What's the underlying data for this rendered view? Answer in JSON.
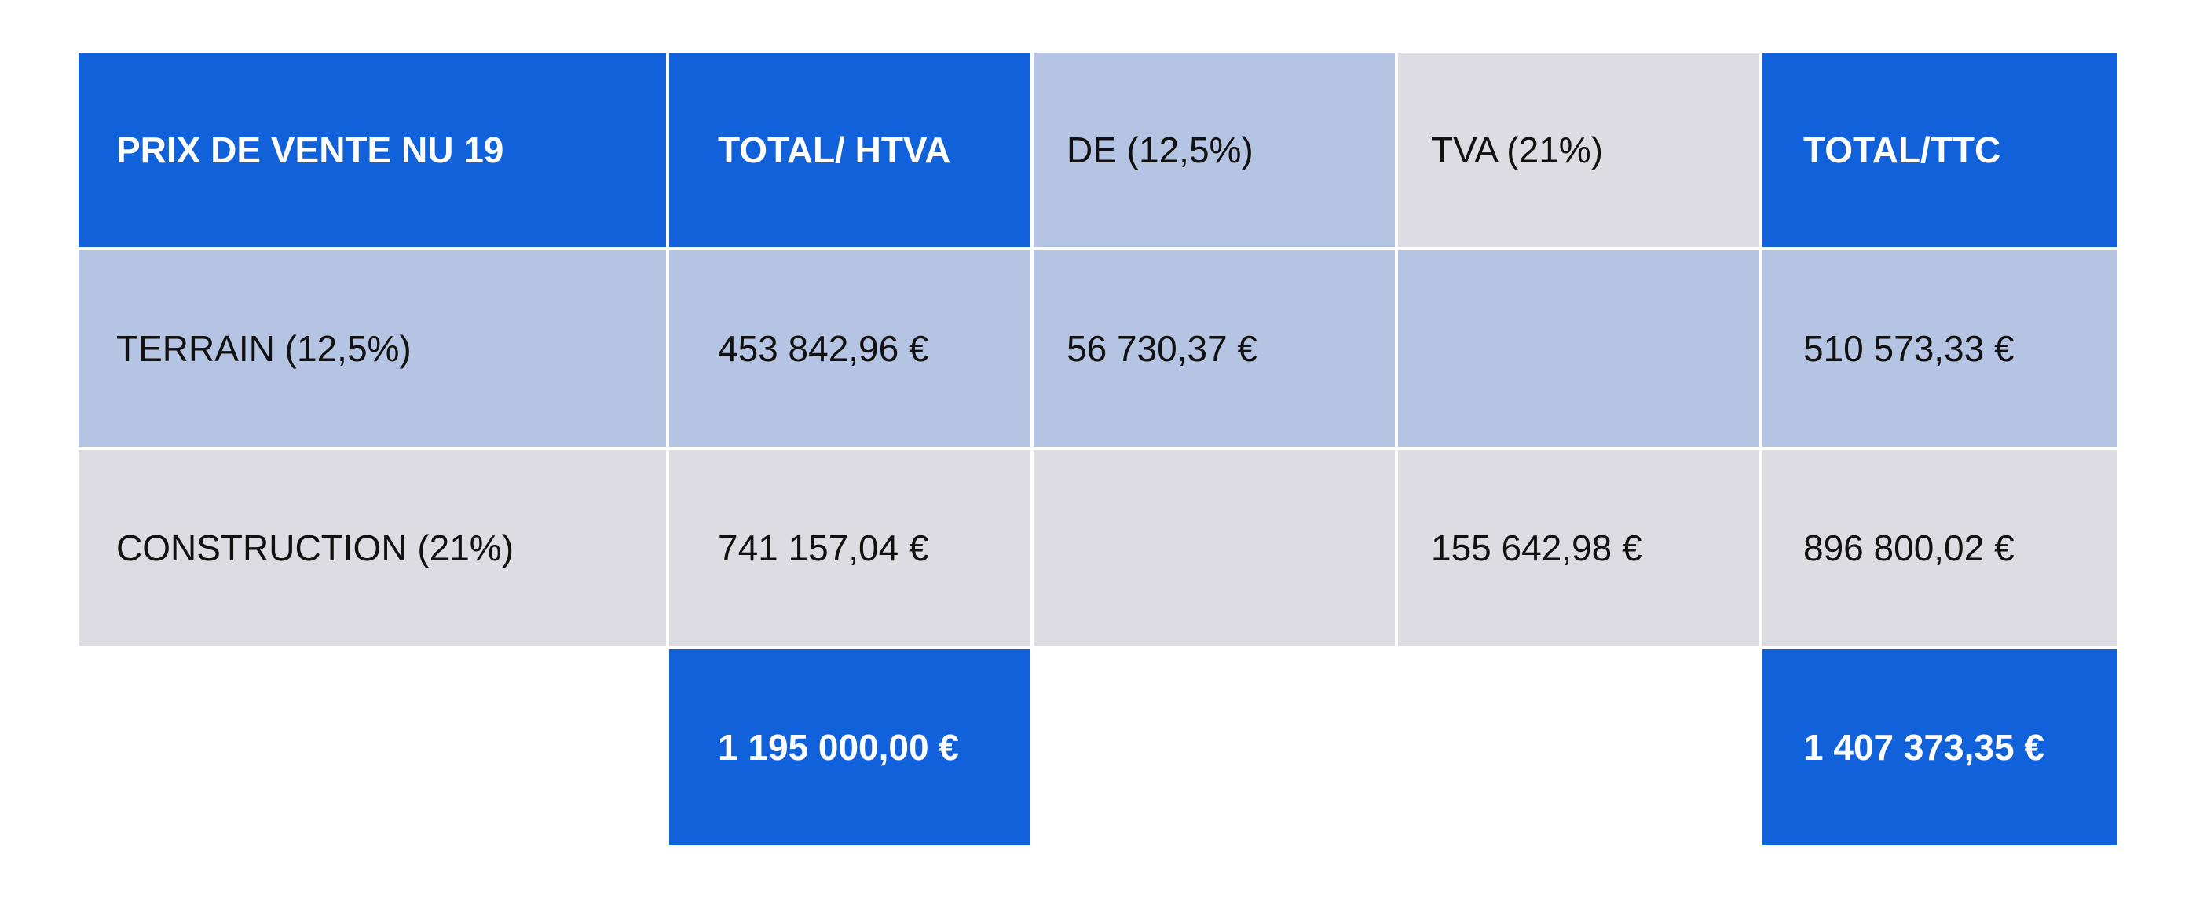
{
  "table": {
    "header": {
      "col1": "PRIX DE VENTE NU 19",
      "col2": "TOTAL/ HTVA",
      "col3": "DE (12,5%)",
      "col4": "TVA (21%)",
      "col5": "TOTAL/TTC"
    },
    "rows": [
      {
        "label": "TERRAIN (12,5%)",
        "htva": "453 842,96 €",
        "de": "56 730,37 €",
        "tva": "",
        "ttc": "510 573,33 €"
      },
      {
        "label": "CONSTRUCTION (21%)",
        "htva": "741 157,04 €",
        "de": "",
        "tva": "155 642,98 €",
        "ttc": "896 800,02 €"
      }
    ],
    "totals": {
      "htva": "1 195 000,00 €",
      "ttc": "1 407 373,35 €"
    }
  },
  "colors": {
    "primary_blue": "#1161db",
    "light_blue": "#b4c4e2",
    "light_grey": "#dcdce2"
  }
}
